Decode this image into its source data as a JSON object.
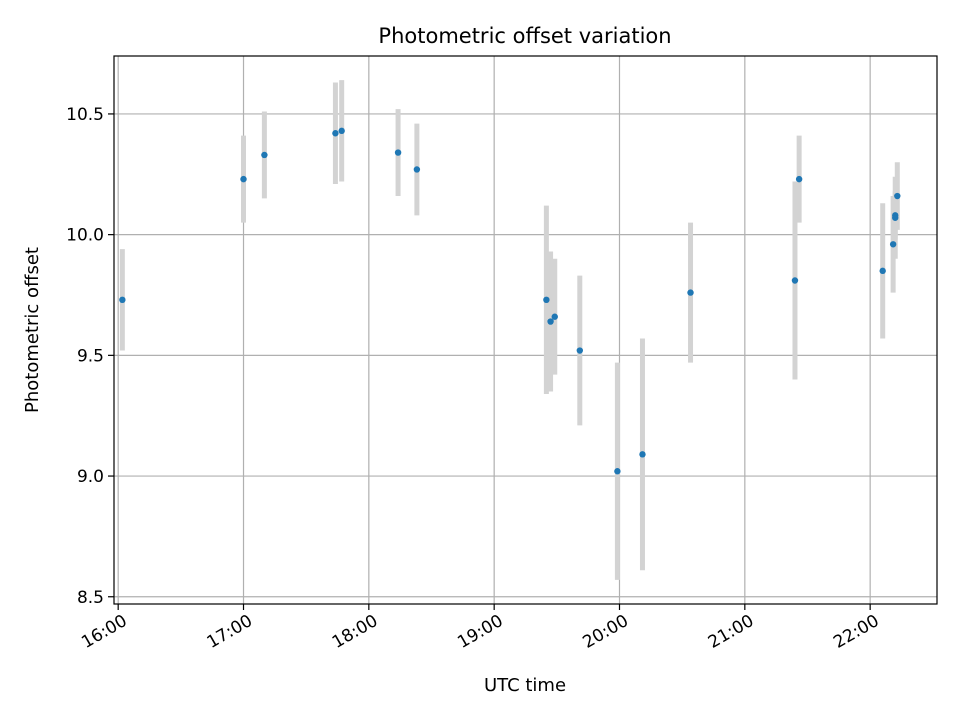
{
  "chart_data": {
    "type": "scatter",
    "title": "Photometric offset variation",
    "xlabel": "UTC time",
    "ylabel": "Photometric offset",
    "x_ticks": [
      "16:00",
      "17:00",
      "18:00",
      "19:00",
      "20:00",
      "21:00",
      "22:00"
    ],
    "y_ticks": [
      "8.5",
      "9.0",
      "9.5",
      "10.0",
      "10.5"
    ],
    "xlim": [
      "15:58",
      "22:32"
    ],
    "ylim": [
      8.47,
      10.74
    ],
    "grid": true,
    "point_color": "#1f77b4",
    "errorbar_color": "#d3d3d3",
    "points": [
      {
        "x": "16:02",
        "y": 9.73,
        "err": 0.21
      },
      {
        "x": "17:00",
        "y": 10.23,
        "err": 0.18
      },
      {
        "x": "17:10",
        "y": 10.33,
        "err": 0.18
      },
      {
        "x": "17:44",
        "y": 10.42,
        "err": 0.21
      },
      {
        "x": "17:47",
        "y": 10.43,
        "err": 0.21
      },
      {
        "x": "18:14",
        "y": 10.34,
        "err": 0.18
      },
      {
        "x": "18:23",
        "y": 10.27,
        "err": 0.19
      },
      {
        "x": "19:25",
        "y": 9.73,
        "err": 0.39
      },
      {
        "x": "19:27",
        "y": 9.64,
        "err": 0.29
      },
      {
        "x": "19:29",
        "y": 9.66,
        "err": 0.24
      },
      {
        "x": "19:41",
        "y": 9.52,
        "err": 0.31
      },
      {
        "x": "19:59",
        "y": 9.02,
        "err": 0.45
      },
      {
        "x": "20:11",
        "y": 9.09,
        "err": 0.48
      },
      {
        "x": "20:34",
        "y": 9.76,
        "err": 0.29
      },
      {
        "x": "21:24",
        "y": 9.81,
        "err": 0.41
      },
      {
        "x": "21:26",
        "y": 10.23,
        "err": 0.18
      },
      {
        "x": "22:06",
        "y": 9.85,
        "err": 0.28
      },
      {
        "x": "22:11",
        "y": 9.96,
        "err": 0.2
      },
      {
        "x": "22:12",
        "y": 10.07,
        "err": 0.17
      },
      {
        "x": "22:12",
        "y": 10.08,
        "err": 0.1
      },
      {
        "x": "22:13",
        "y": 10.16,
        "err": 0.14
      }
    ]
  }
}
